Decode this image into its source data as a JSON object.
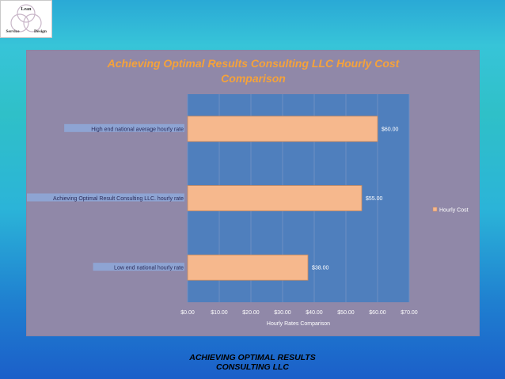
{
  "logo": {
    "words": [
      "Lean",
      "Service",
      "Design"
    ]
  },
  "footer": {
    "line1": "ACHIEVING OPTIMAL RESULTS",
    "line2": "CONSULTING LLC"
  },
  "colors": {
    "panel": "#9088a8",
    "plot": "#4f7fbd",
    "bar": "#f6b88d",
    "title": "#f5a23a",
    "label_bg": "#8ea9db"
  },
  "chart_data": {
    "type": "bar",
    "orientation": "horizontal",
    "title_lines": [
      "Achieving Optimal Results Consulting LLC Hourly Cost",
      "Comparison"
    ],
    "xlabel": "Hourly Rates Comparison",
    "ylabel": "",
    "xlim": [
      0,
      70
    ],
    "xticks": [
      0,
      10,
      20,
      30,
      40,
      50,
      60,
      70
    ],
    "xtick_labels": [
      "$0.00",
      "$10.00",
      "$20.00",
      "$30.00",
      "$40.00",
      "$50.00",
      "$60.00",
      "$70.00"
    ],
    "categories": [
      "High end national average hourly rate",
      "Achieving Optimal Result Consulting LLC. hourly rate",
      "Low end national hourly rate"
    ],
    "values": [
      60,
      55,
      38
    ],
    "data_labels": [
      "$60.00",
      "$55.00",
      "$38.00"
    ],
    "series": [
      {
        "name": "Hourly Cost",
        "values": [
          60,
          55,
          38
        ]
      }
    ],
    "legend_position": "right",
    "grid": true
  }
}
